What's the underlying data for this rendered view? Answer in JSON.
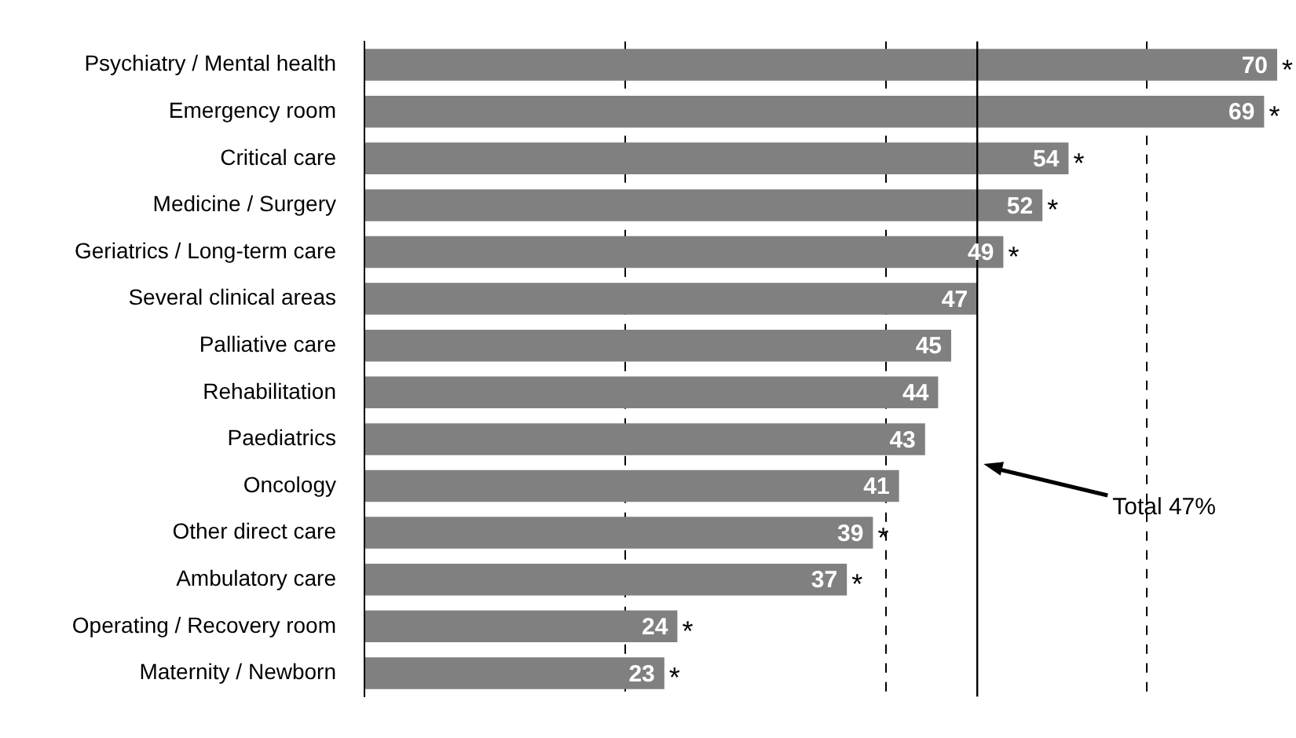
{
  "chart_data": {
    "type": "bar",
    "orientation": "horizontal",
    "categories": [
      "Psychiatry / Mental health",
      "Emergency room",
      "Critical care",
      "Medicine / Surgery",
      "Geriatrics / Long-term care",
      "Several clinical areas",
      "Palliative care",
      "Rehabilitation",
      "Paediatrics",
      "Oncology",
      "Other direct care",
      "Ambulatory care",
      "Operating / Recovery room",
      "Maternity / Newborn"
    ],
    "values": [
      70,
      69,
      54,
      52,
      49,
      47,
      45,
      44,
      43,
      41,
      39,
      37,
      24,
      23
    ],
    "color": "#808080",
    "data_labels": true,
    "xticks": [
      {
        "value": 0,
        "label": null
      },
      {
        "value": 20,
        "label": null
      },
      {
        "value": 40,
        "label": null
      },
      {
        "value": 60,
        "label": null
      }
    ],
    "tick_labels": "y",
    "grid": "x",
    "legend": false,
    "ref_lines": [
      {
        "axis": "x",
        "value": 47,
        "label": "Total 47%",
        "color": "#000000"
      }
    ],
    "annotations": [
      {
        "text": "*",
        "x": 70,
        "y": "Psychiatry / Mental health"
      },
      {
        "text": "*",
        "x": 69,
        "y": "Emergency room"
      },
      {
        "text": "*",
        "x": 54,
        "y": "Critical care"
      },
      {
        "text": "*",
        "x": 52,
        "y": "Medicine / Surgery"
      },
      {
        "text": "*",
        "x": 49,
        "y": "Geriatrics / Long-term care"
      },
      {
        "text": "*",
        "x": 39,
        "y": "Other direct care"
      },
      {
        "text": "*",
        "x": 37,
        "y": "Ambulatory care"
      },
      {
        "text": "*",
        "x": 24,
        "y": "Operating / Recovery room"
      },
      {
        "text": "*",
        "x": 23,
        "y": "Maternity / Newborn"
      }
    ]
  }
}
